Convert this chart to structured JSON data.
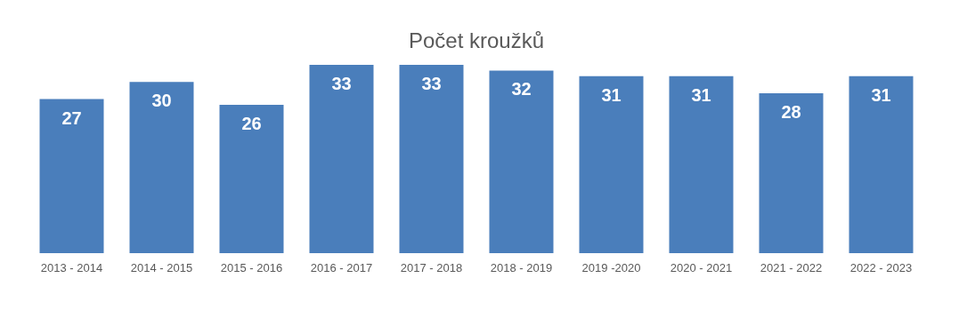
{
  "chart_data": {
    "type": "bar",
    "title": "Počet kroužků",
    "categories": [
      "2013 - 2014",
      "2014 - 2015",
      "2015 - 2016",
      "2016 - 2017",
      "2017 - 2018",
      "2018 - 2019",
      "2019 -2020",
      "2020 - 2021",
      "2021 - 2022",
      "2022 - 2023"
    ],
    "values": [
      27,
      30,
      26,
      33,
      33,
      32,
      31,
      31,
      28,
      31
    ],
    "color": "#4a7ebb",
    "ylim": [
      0,
      33
    ],
    "data_labels": true,
    "grid": false
  }
}
